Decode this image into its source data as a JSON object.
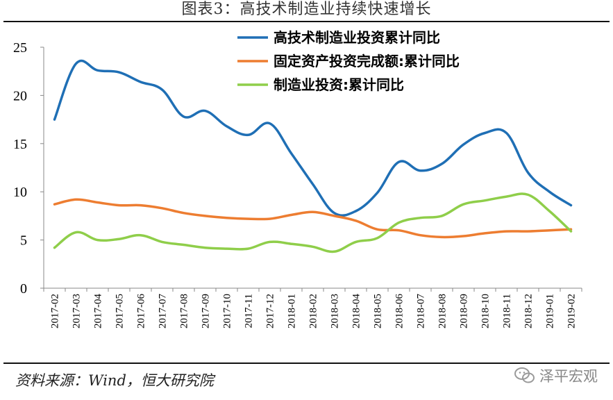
{
  "title": "图表3：高技术制造业持续快速增长",
  "source": "资料来源：Wind，恒大研究院",
  "watermark": "泽平宏观",
  "watermark_icon": "wechat-icon",
  "chart_data": {
    "type": "line",
    "x": [
      "2017-02",
      "2017-03",
      "2017-04",
      "2017-05",
      "2017-06",
      "2017-07",
      "2017-08",
      "2017-09",
      "2017-10",
      "2017-11",
      "2017-12",
      "2018-01",
      "2018-02",
      "2018-03",
      "2018-04",
      "2018-05",
      "2018-06",
      "2018-07",
      "2018-08",
      "2018-09",
      "2018-10",
      "2018-11",
      "2018-12",
      "2019-01",
      "2019-02"
    ],
    "ylim": [
      0,
      25
    ],
    "yticks": [
      0,
      5,
      10,
      15,
      20,
      25
    ],
    "legend_position": "top-right",
    "grid": false,
    "series": [
      {
        "name": "高技术制造业投资累计同比",
        "color": "#1f6fb5",
        "values": [
          17.5,
          23.3,
          22.6,
          22.4,
          21.4,
          20.6,
          17.8,
          18.4,
          16.8,
          15.9,
          17.1,
          14.0,
          10.8,
          7.8,
          8.0,
          9.9,
          13.1,
          12.2,
          12.9,
          14.9,
          16.1,
          16.1,
          12.0,
          10.0,
          8.6
        ]
      },
      {
        "name": "固定资产投资完成额:累计同比",
        "color": "#ed7d31",
        "values": [
          8.7,
          9.2,
          8.9,
          8.6,
          8.6,
          8.3,
          7.8,
          7.5,
          7.3,
          7.2,
          7.2,
          7.6,
          7.9,
          7.5,
          7.0,
          6.1,
          6.0,
          5.5,
          5.3,
          5.4,
          5.7,
          5.9,
          5.9,
          6.0,
          6.1
        ]
      },
      {
        "name": "制造业投资:累计同比",
        "color": "#8fce4a",
        "values": [
          4.2,
          5.8,
          5.0,
          5.1,
          5.5,
          4.8,
          4.5,
          4.2,
          4.1,
          4.1,
          4.8,
          4.6,
          4.3,
          3.8,
          4.8,
          5.2,
          6.8,
          7.3,
          7.5,
          8.7,
          9.1,
          9.5,
          9.7,
          8.0,
          5.9
        ]
      }
    ]
  }
}
